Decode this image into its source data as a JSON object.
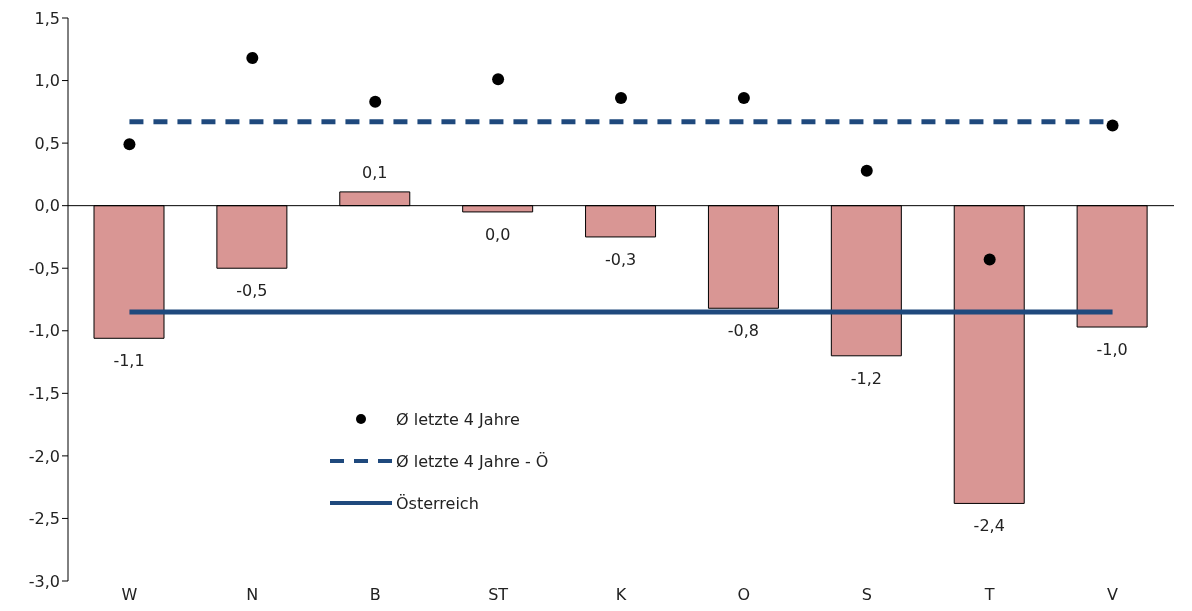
{
  "chart_data": {
    "type": "bar",
    "categories": [
      "W",
      "N",
      "B",
      "ST",
      "K",
      "O",
      "S",
      "T",
      "V"
    ],
    "ylim": [
      -3,
      1.5
    ],
    "yticks": [
      {
        "value": -3,
        "label": "-3,0"
      },
      {
        "value": -2.5,
        "label": "-2,5"
      },
      {
        "value": -2,
        "label": "-2,0"
      },
      {
        "value": -1.5,
        "label": "-1,5"
      },
      {
        "value": -1,
        "label": "-1,0"
      },
      {
        "value": -0.5,
        "label": "-0,5"
      },
      {
        "value": 0,
        "label": "0,0"
      },
      {
        "value": 0.5,
        "label": "0,5"
      },
      {
        "value": 1,
        "label": "1,0"
      },
      {
        "value": 1.5,
        "label": "1,5"
      }
    ],
    "grid": false,
    "legend": "bottom left",
    "series": [
      {
        "color": "#d99694",
        "values": [
          -1.06,
          -0.5,
          0.11,
          -0.05,
          -0.25,
          -0.82,
          -1.2,
          -2.38,
          -0.97
        ],
        "value_labels": [
          "-1,1",
          "-0,5",
          "0,1",
          "0,0",
          "-0,3",
          "-0,8",
          "-1,2",
          "-2,4",
          "-1,0"
        ]
      },
      {
        "type": "scatter",
        "name": "Ø letzte 4 Jahre",
        "color": "#000000",
        "marker": "circle",
        "values": [
          0.49,
          1.18,
          0.83,
          1.01,
          0.86,
          0.86,
          0.28,
          -0.43,
          0.64
        ]
      },
      {
        "type": "line",
        "name": "Ø letzte 4 Jahre - Ö",
        "color": "#1f497d",
        "line_style": "dashed",
        "marker": "none",
        "values": [
          0.67,
          0.67,
          0.67,
          0.67,
          0.67,
          0.67,
          0.67,
          0.67,
          0.67
        ]
      },
      {
        "type": "line",
        "name": "Österreich",
        "color": "#1f497d",
        "line_style": "solid",
        "marker": "none",
        "values": [
          -0.85,
          -0.85,
          -0.85,
          -0.85,
          -0.85,
          -0.85,
          -0.85,
          -0.85,
          -0.85
        ]
      }
    ]
  }
}
